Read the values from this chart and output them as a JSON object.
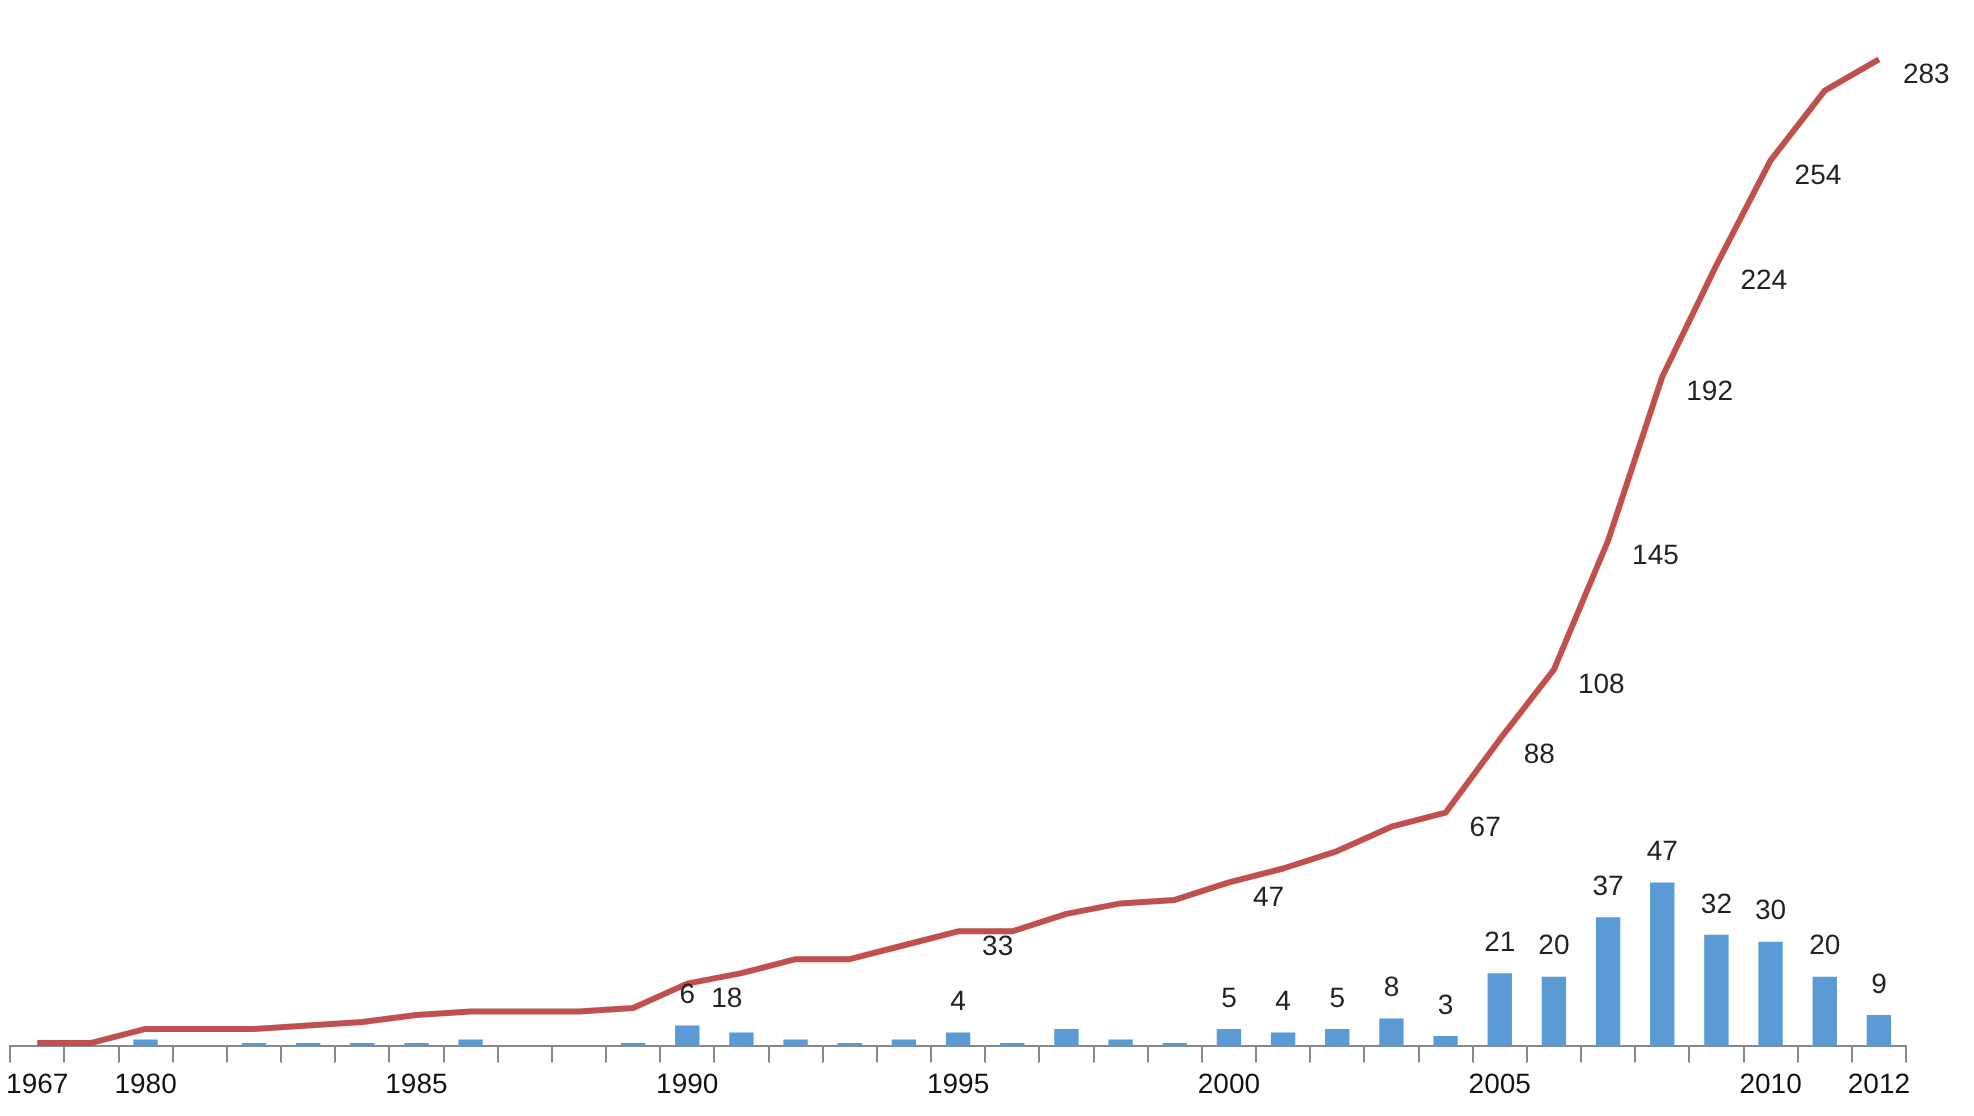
{
  "chart_data": {
    "type": "bar",
    "categories": [
      "1967",
      null,
      "1980",
      null,
      null,
      null,
      null,
      "1985",
      null,
      null,
      null,
      null,
      "1990",
      null,
      null,
      null,
      null,
      "1995",
      null,
      null,
      null,
      null,
      "2000",
      null,
      null,
      null,
      null,
      "2005",
      null,
      null,
      null,
      null,
      "2010",
      null,
      "2012"
    ],
    "series": [
      {
        "color": "#5b9bd5",
        "values": [
          null,
          null,
          2,
          0,
          1,
          1,
          1,
          1,
          2,
          0,
          0,
          1,
          6,
          4,
          2,
          1,
          2,
          4,
          1,
          5,
          2,
          1,
          5,
          4,
          5,
          8,
          3,
          21,
          20,
          37,
          47,
          32,
          30,
          20,
          9
        ],
        "value_labels": [
          null,
          null,
          null,
          null,
          null,
          null,
          null,
          null,
          null,
          null,
          null,
          null,
          "6",
          null,
          null,
          null,
          null,
          "4",
          null,
          null,
          null,
          null,
          "5",
          "4",
          "5",
          "8",
          "3",
          "21",
          "20",
          "37",
          "47",
          "32",
          "30",
          "20",
          "9"
        ]
      },
      {
        "type": "line",
        "color": "#c0504d",
        "values": [
          1,
          1,
          5,
          5,
          5,
          6,
          7,
          9,
          10,
          10,
          10,
          11,
          18,
          21,
          25,
          25,
          29,
          33,
          33,
          38,
          41,
          42,
          47,
          51,
          56,
          63,
          67,
          88,
          108,
          145,
          192,
          224,
          254,
          274,
          283
        ],
        "value_labels": [
          null,
          null,
          null,
          null,
          null,
          null,
          null,
          null,
          null,
          null,
          null,
          null,
          "18",
          null,
          null,
          null,
          null,
          "33",
          null,
          null,
          null,
          null,
          "47",
          null,
          null,
          null,
          "67",
          "88",
          "108",
          "145",
          "192",
          "224",
          "254",
          null,
          "283"
        ]
      }
    ],
    "legend": false,
    "grid": false,
    "marker": "none",
    "line_style": "solid"
  }
}
